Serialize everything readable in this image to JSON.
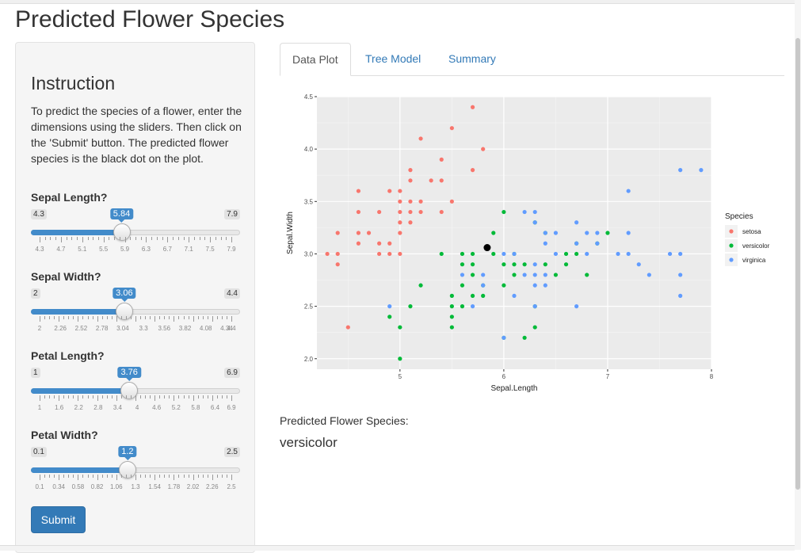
{
  "page": {
    "title": "Predicted Flower Species"
  },
  "sidebar": {
    "heading": "Instruction",
    "text": "To predict the species of a flower, enter the dimensions using the sliders. Then click on the 'Submit' button. The predicted flower species is the black dot on the plot.",
    "submit_label": "Submit"
  },
  "sliders": [
    {
      "label": "Sepal Length?",
      "min": 4.3,
      "max": 7.9,
      "value": 5.84,
      "min_label": "4.3",
      "max_label": "7.9",
      "value_label": "5.84",
      "ticks": [
        "4.3",
        "4.7",
        "5.1",
        "5.5",
        "5.9",
        "6.3",
        "6.7",
        "7.1",
        "7.5",
        "7.9"
      ]
    },
    {
      "label": "Sepal Width?",
      "min": 2,
      "max": 4.4,
      "value": 3.06,
      "min_label": "2",
      "max_label": "4.4",
      "value_label": "3.06",
      "ticks": [
        "2",
        "2.26",
        "2.52",
        "2.78",
        "3.04",
        "3.3",
        "3.56",
        "3.82",
        "4.08",
        "4.34",
        "4.4"
      ]
    },
    {
      "label": "Petal Length?",
      "min": 1,
      "max": 6.9,
      "value": 3.76,
      "min_label": "1",
      "max_label": "6.9",
      "value_label": "3.76",
      "ticks": [
        "1",
        "1.6",
        "2.2",
        "2.8",
        "3.4",
        "4",
        "4.6",
        "5.2",
        "5.8",
        "6.4",
        "6.9"
      ]
    },
    {
      "label": "Petal Width?",
      "min": 0.1,
      "max": 2.5,
      "value": 1.2,
      "min_label": "0.1",
      "max_label": "2.5",
      "value_label": "1.2",
      "ticks": [
        "0.1",
        "0.34",
        "0.58",
        "0.82",
        "1.06",
        "1.3",
        "1.54",
        "1.78",
        "2.02",
        "2.26",
        "2.5"
      ]
    }
  ],
  "tabs": [
    {
      "label": "Data Plot",
      "active": true
    },
    {
      "label": "Tree Model",
      "active": false
    },
    {
      "label": "Summary",
      "active": false
    }
  ],
  "prediction": {
    "label": "Predicted Flower Species:",
    "value": "versicolor"
  },
  "chart_data": {
    "type": "scatter",
    "title": "",
    "xlabel": "Sepal.Length",
    "ylabel": "Sepal.Width",
    "xlim": [
      4.2,
      8.0
    ],
    "ylim": [
      1.9,
      4.5
    ],
    "x_ticks": [
      "5",
      "6",
      "7",
      "8"
    ],
    "y_ticks": [
      "2.0",
      "2.5",
      "3.0",
      "3.5",
      "4.0",
      "4.5"
    ],
    "grid": true,
    "legend": {
      "title": "Species",
      "placement": "right"
    },
    "series": [
      {
        "name": "setosa",
        "color": "#f8766d",
        "points": [
          [
            4.3,
            3.0
          ],
          [
            4.4,
            2.9
          ],
          [
            4.4,
            3.0
          ],
          [
            4.4,
            3.2
          ],
          [
            4.5,
            2.3
          ],
          [
            4.6,
            3.1
          ],
          [
            4.6,
            3.2
          ],
          [
            4.6,
            3.4
          ],
          [
            4.6,
            3.6
          ],
          [
            4.7,
            3.2
          ],
          [
            4.8,
            3.0
          ],
          [
            4.8,
            3.1
          ],
          [
            4.8,
            3.4
          ],
          [
            4.9,
            3.0
          ],
          [
            4.9,
            3.1
          ],
          [
            4.9,
            3.6
          ],
          [
            5.0,
            3.0
          ],
          [
            5.0,
            3.2
          ],
          [
            5.0,
            3.3
          ],
          [
            5.0,
            3.4
          ],
          [
            5.0,
            3.5
          ],
          [
            5.0,
            3.6
          ],
          [
            5.1,
            3.3
          ],
          [
            5.1,
            3.4
          ],
          [
            5.1,
            3.5
          ],
          [
            5.1,
            3.7
          ],
          [
            5.1,
            3.8
          ],
          [
            5.2,
            3.4
          ],
          [
            5.2,
            3.5
          ],
          [
            5.2,
            4.1
          ],
          [
            5.3,
            3.7
          ],
          [
            5.4,
            3.4
          ],
          [
            5.4,
            3.7
          ],
          [
            5.4,
            3.9
          ],
          [
            5.5,
            3.5
          ],
          [
            5.5,
            4.2
          ],
          [
            5.7,
            3.8
          ],
          [
            5.7,
            4.4
          ],
          [
            5.8,
            4.0
          ]
        ]
      },
      {
        "name": "versicolor",
        "color": "#00ba38",
        "points": [
          [
            4.9,
            2.4
          ],
          [
            5.0,
            2.0
          ],
          [
            5.0,
            2.3
          ],
          [
            5.1,
            2.5
          ],
          [
            5.2,
            2.7
          ],
          [
            5.4,
            3.0
          ],
          [
            5.5,
            2.3
          ],
          [
            5.5,
            2.4
          ],
          [
            5.5,
            2.5
          ],
          [
            5.5,
            2.6
          ],
          [
            5.6,
            2.5
          ],
          [
            5.6,
            2.7
          ],
          [
            5.6,
            2.9
          ],
          [
            5.6,
            3.0
          ],
          [
            5.7,
            2.6
          ],
          [
            5.7,
            2.8
          ],
          [
            5.7,
            2.9
          ],
          [
            5.7,
            3.0
          ],
          [
            5.8,
            2.6
          ],
          [
            5.8,
            2.7
          ],
          [
            5.9,
            3.0
          ],
          [
            5.9,
            3.2
          ],
          [
            6.0,
            2.2
          ],
          [
            6.0,
            2.7
          ],
          [
            6.0,
            2.9
          ],
          [
            6.0,
            3.4
          ],
          [
            6.1,
            2.8
          ],
          [
            6.1,
            2.9
          ],
          [
            6.1,
            3.0
          ],
          [
            6.2,
            2.2
          ],
          [
            6.2,
            2.9
          ],
          [
            6.3,
            2.3
          ],
          [
            6.3,
            2.5
          ],
          [
            6.3,
            3.3
          ],
          [
            6.4,
            2.9
          ],
          [
            6.4,
            3.2
          ],
          [
            6.5,
            2.8
          ],
          [
            6.6,
            2.9
          ],
          [
            6.6,
            3.0
          ],
          [
            6.7,
            3.0
          ],
          [
            6.7,
            3.1
          ],
          [
            6.8,
            2.8
          ],
          [
            6.9,
            3.1
          ],
          [
            7.0,
            3.2
          ]
        ]
      },
      {
        "name": "virginica",
        "color": "#619cff",
        "points": [
          [
            4.9,
            2.5
          ],
          [
            5.6,
            2.8
          ],
          [
            5.7,
            2.5
          ],
          [
            5.8,
            2.7
          ],
          [
            5.8,
            2.8
          ],
          [
            6.0,
            2.2
          ],
          [
            6.0,
            3.0
          ],
          [
            6.1,
            2.6
          ],
          [
            6.1,
            3.0
          ],
          [
            6.2,
            2.8
          ],
          [
            6.2,
            3.4
          ],
          [
            6.3,
            2.5
          ],
          [
            6.3,
            2.7
          ],
          [
            6.3,
            2.8
          ],
          [
            6.3,
            2.9
          ],
          [
            6.3,
            3.3
          ],
          [
            6.3,
            3.4
          ],
          [
            6.4,
            2.7
          ],
          [
            6.4,
            2.8
          ],
          [
            6.4,
            3.1
          ],
          [
            6.4,
            3.2
          ],
          [
            6.5,
            3.0
          ],
          [
            6.5,
            3.2
          ],
          [
            6.7,
            2.5
          ],
          [
            6.7,
            3.1
          ],
          [
            6.7,
            3.3
          ],
          [
            6.8,
            3.0
          ],
          [
            6.8,
            3.2
          ],
          [
            6.9,
            3.1
          ],
          [
            6.9,
            3.2
          ],
          [
            7.1,
            3.0
          ],
          [
            7.2,
            3.0
          ],
          [
            7.2,
            3.2
          ],
          [
            7.2,
            3.6
          ],
          [
            7.3,
            2.9
          ],
          [
            7.4,
            2.8
          ],
          [
            7.6,
            3.0
          ],
          [
            7.7,
            2.6
          ],
          [
            7.7,
            2.8
          ],
          [
            7.7,
            3.0
          ],
          [
            7.7,
            3.8
          ],
          [
            7.9,
            3.8
          ]
        ]
      }
    ],
    "highlight_point": {
      "x": 5.84,
      "y": 3.06,
      "color": "#000000"
    }
  }
}
